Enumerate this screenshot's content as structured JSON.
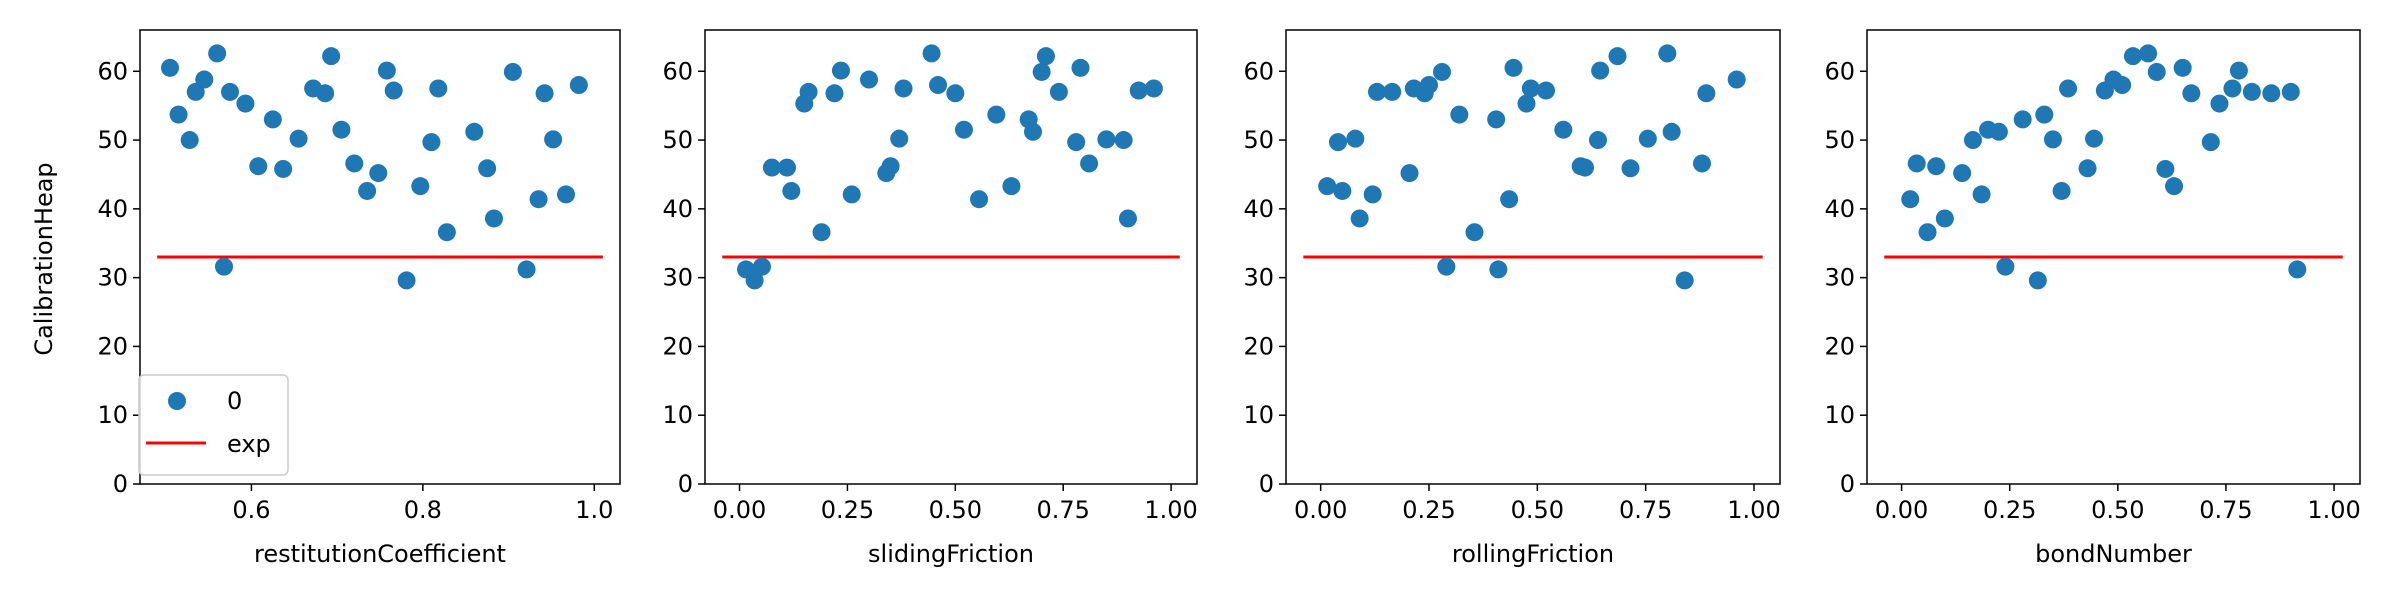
{
  "figure": {
    "ylabel": "CalibrationHeap"
  },
  "legend": {
    "scatter_label": "0",
    "line_label": "exp"
  },
  "colors": {
    "scatter": "#1f77b4",
    "exp_line": "#ff0000",
    "axes": "#000000"
  },
  "chart_data": [
    {
      "type": "scatter",
      "xlabel": "restitutionCoefficient",
      "ylabel": "CalibrationHeap",
      "xlim": [
        0.47,
        1.03
      ],
      "ylim": [
        0,
        66
      ],
      "xticks": [
        0.6,
        0.8,
        1.0
      ],
      "xtick_labels": [
        "0.6",
        "0.8",
        "1.0"
      ],
      "yticks": [
        0,
        10,
        20,
        30,
        40,
        50,
        60
      ],
      "ytick_labels": [
        "0",
        "10",
        "20",
        "30",
        "40",
        "50",
        "60"
      ],
      "exp": 33,
      "exp_x": [
        0.49,
        1.01
      ],
      "legend": "lower-left",
      "points": [
        [
          0.505,
          60.5
        ],
        [
          0.515,
          53.7
        ],
        [
          0.528,
          50.0
        ],
        [
          0.535,
          57.0
        ],
        [
          0.545,
          58.8
        ],
        [
          0.56,
          62.6
        ],
        [
          0.568,
          31.6
        ],
        [
          0.575,
          57.0
        ],
        [
          0.593,
          55.3
        ],
        [
          0.608,
          46.2
        ],
        [
          0.625,
          53.0
        ],
        [
          0.637,
          45.8
        ],
        [
          0.655,
          50.2
        ],
        [
          0.672,
          57.5
        ],
        [
          0.686,
          56.8
        ],
        [
          0.693,
          62.2
        ],
        [
          0.705,
          51.5
        ],
        [
          0.72,
          46.6
        ],
        [
          0.735,
          42.6
        ],
        [
          0.748,
          45.2
        ],
        [
          0.758,
          60.1
        ],
        [
          0.766,
          57.2
        ],
        [
          0.781,
          29.6
        ],
        [
          0.797,
          43.3
        ],
        [
          0.81,
          49.7
        ],
        [
          0.818,
          57.5
        ],
        [
          0.828,
          36.6
        ],
        [
          0.86,
          51.2
        ],
        [
          0.875,
          45.9
        ],
        [
          0.883,
          38.6
        ],
        [
          0.905,
          59.9
        ],
        [
          0.921,
          31.2
        ],
        [
          0.935,
          41.4
        ],
        [
          0.942,
          56.8
        ],
        [
          0.952,
          50.1
        ],
        [
          0.967,
          42.1
        ],
        [
          0.982,
          58.0
        ]
      ]
    },
    {
      "type": "scatter",
      "xlabel": "slidingFriction",
      "ylabel": "",
      "xlim": [
        -0.08,
        1.06
      ],
      "ylim": [
        0,
        66
      ],
      "xticks": [
        0.0,
        0.25,
        0.5,
        0.75,
        1.0
      ],
      "xtick_labels": [
        "0.00",
        "0.25",
        "0.50",
        "0.75",
        "1.00"
      ],
      "yticks": [
        0,
        10,
        20,
        30,
        40,
        50,
        60
      ],
      "ytick_labels": [
        "0",
        "10",
        "20",
        "30",
        "40",
        "50",
        "60"
      ],
      "exp": 33,
      "exp_x": [
        -0.04,
        1.02
      ],
      "points": [
        [
          0.015,
          31.2
        ],
        [
          0.035,
          29.6
        ],
        [
          0.052,
          31.6
        ],
        [
          0.075,
          46.0
        ],
        [
          0.11,
          46.0
        ],
        [
          0.12,
          42.6
        ],
        [
          0.15,
          55.3
        ],
        [
          0.16,
          57.0
        ],
        [
          0.19,
          36.6
        ],
        [
          0.22,
          56.8
        ],
        [
          0.235,
          60.1
        ],
        [
          0.26,
          42.1
        ],
        [
          0.3,
          58.8
        ],
        [
          0.34,
          45.2
        ],
        [
          0.35,
          46.2
        ],
        [
          0.37,
          50.2
        ],
        [
          0.38,
          57.5
        ],
        [
          0.445,
          62.6
        ],
        [
          0.46,
          58.0
        ],
        [
          0.5,
          56.8
        ],
        [
          0.52,
          51.5
        ],
        [
          0.555,
          41.4
        ],
        [
          0.595,
          53.7
        ],
        [
          0.63,
          43.3
        ],
        [
          0.67,
          53.0
        ],
        [
          0.68,
          51.2
        ],
        [
          0.7,
          59.9
        ],
        [
          0.71,
          62.2
        ],
        [
          0.74,
          57.0
        ],
        [
          0.78,
          49.7
        ],
        [
          0.79,
          60.5
        ],
        [
          0.81,
          46.6
        ],
        [
          0.85,
          50.1
        ],
        [
          0.89,
          50.0
        ],
        [
          0.9,
          38.6
        ],
        [
          0.925,
          57.2
        ],
        [
          0.96,
          57.5
        ]
      ]
    },
    {
      "type": "scatter",
      "xlabel": "rollingFriction",
      "ylabel": "",
      "xlim": [
        -0.08,
        1.06
      ],
      "ylim": [
        0,
        66
      ],
      "xticks": [
        0.0,
        0.25,
        0.5,
        0.75,
        1.0
      ],
      "xtick_labels": [
        "0.00",
        "0.25",
        "0.50",
        "0.75",
        "1.00"
      ],
      "yticks": [
        0,
        10,
        20,
        30,
        40,
        50,
        60
      ],
      "ytick_labels": [
        "0",
        "10",
        "20",
        "30",
        "40",
        "50",
        "60"
      ],
      "exp": 33,
      "exp_x": [
        -0.04,
        1.02
      ],
      "points": [
        [
          0.015,
          43.3
        ],
        [
          0.04,
          49.7
        ],
        [
          0.05,
          42.6
        ],
        [
          0.08,
          50.2
        ],
        [
          0.09,
          38.6
        ],
        [
          0.12,
          42.1
        ],
        [
          0.13,
          57.0
        ],
        [
          0.165,
          57.0
        ],
        [
          0.205,
          45.2
        ],
        [
          0.215,
          57.5
        ],
        [
          0.24,
          56.8
        ],
        [
          0.25,
          58.0
        ],
        [
          0.28,
          59.9
        ],
        [
          0.29,
          31.6
        ],
        [
          0.32,
          53.7
        ],
        [
          0.355,
          36.6
        ],
        [
          0.405,
          53.0
        ],
        [
          0.41,
          31.2
        ],
        [
          0.435,
          41.4
        ],
        [
          0.445,
          60.5
        ],
        [
          0.475,
          55.3
        ],
        [
          0.485,
          57.5
        ],
        [
          0.52,
          57.2
        ],
        [
          0.56,
          51.5
        ],
        [
          0.6,
          46.2
        ],
        [
          0.61,
          46.0
        ],
        [
          0.64,
          50.0
        ],
        [
          0.645,
          60.1
        ],
        [
          0.685,
          62.2
        ],
        [
          0.715,
          45.9
        ],
        [
          0.755,
          50.2
        ],
        [
          0.8,
          62.6
        ],
        [
          0.81,
          51.2
        ],
        [
          0.84,
          29.6
        ],
        [
          0.88,
          46.6
        ],
        [
          0.89,
          56.8
        ],
        [
          0.96,
          58.8
        ]
      ]
    },
    {
      "type": "scatter",
      "xlabel": "bondNumber",
      "ylabel": "",
      "xlim": [
        -0.08,
        1.06
      ],
      "ylim": [
        0,
        66
      ],
      "xticks": [
        0.0,
        0.25,
        0.5,
        0.75,
        1.0
      ],
      "xtick_labels": [
        "0.00",
        "0.25",
        "0.50",
        "0.75",
        "1.00"
      ],
      "yticks": [
        0,
        10,
        20,
        30,
        40,
        50,
        60
      ],
      "ytick_labels": [
        "0",
        "10",
        "20",
        "30",
        "40",
        "50",
        "60"
      ],
      "exp": 33,
      "exp_x": [
        -0.04,
        1.02
      ],
      "points": [
        [
          0.02,
          41.4
        ],
        [
          0.035,
          46.6
        ],
        [
          0.06,
          36.6
        ],
        [
          0.08,
          46.2
        ],
        [
          0.1,
          38.6
        ],
        [
          0.14,
          45.2
        ],
        [
          0.165,
          50.0
        ],
        [
          0.185,
          42.1
        ],
        [
          0.2,
          51.5
        ],
        [
          0.225,
          51.2
        ],
        [
          0.24,
          31.6
        ],
        [
          0.28,
          53.0
        ],
        [
          0.315,
          29.6
        ],
        [
          0.33,
          53.7
        ],
        [
          0.35,
          50.1
        ],
        [
          0.37,
          42.6
        ],
        [
          0.385,
          57.5
        ],
        [
          0.43,
          45.9
        ],
        [
          0.445,
          50.2
        ],
        [
          0.47,
          57.2
        ],
        [
          0.49,
          58.8
        ],
        [
          0.51,
          58.0
        ],
        [
          0.535,
          62.2
        ],
        [
          0.57,
          62.6
        ],
        [
          0.59,
          59.9
        ],
        [
          0.61,
          45.8
        ],
        [
          0.63,
          43.3
        ],
        [
          0.65,
          60.5
        ],
        [
          0.67,
          56.8
        ],
        [
          0.715,
          49.7
        ],
        [
          0.735,
          55.3
        ],
        [
          0.765,
          57.5
        ],
        [
          0.78,
          60.1
        ],
        [
          0.81,
          57.0
        ],
        [
          0.855,
          56.8
        ],
        [
          0.9,
          57.0
        ],
        [
          0.915,
          31.2
        ]
      ]
    }
  ]
}
